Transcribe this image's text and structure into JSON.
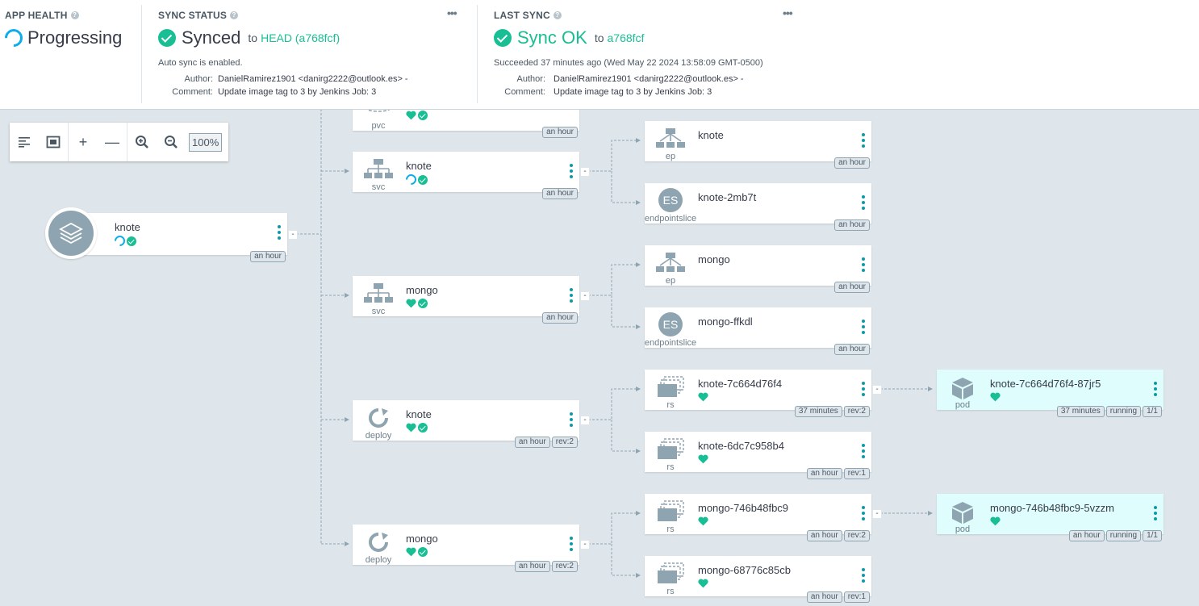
{
  "app_health": {
    "title": "APP HEALTH",
    "status": "Progressing"
  },
  "sync_status": {
    "title": "SYNC STATUS",
    "status": "Synced",
    "to_label": "to",
    "revision": "HEAD (a768fcf)",
    "auto_sync": "Auto sync is enabled.",
    "author_label": "Author:",
    "author": "DanielRamirez1901 <danirg2222@outlook.es> -",
    "comment_label": "Comment:",
    "comment": "Update image tag to 3 by Jenkins Job: 3",
    "menu": "•••"
  },
  "last_sync": {
    "title": "LAST SYNC",
    "status": "Sync OK",
    "to_label": "to",
    "revision": "a768fcf",
    "succeeded": "Succeeded 37 minutes ago (Wed May 22 2024 13:58:09 GMT-0500)",
    "author_label": "Author:",
    "author": "DanielRamirez1901 <danirg2222@outlook.es> -",
    "comment_label": "Comment:",
    "comment": "Update image tag to 3 by Jenkins Job: 3",
    "menu": "•••"
  },
  "toolbar": {
    "zoom": "100%"
  },
  "colors": {
    "healthy": "#18be94",
    "progressing": "#0dadea",
    "kebab": "#0c9aa6",
    "icon_gray": "#8fa4b1"
  },
  "app": {
    "name": "knote",
    "age": "an hour"
  },
  "nodes": {
    "pvc": {
      "kind": "pvc",
      "age": "an hour"
    },
    "svc_knote": {
      "name": "knote",
      "kind": "svc",
      "age": "an hour"
    },
    "ep_knote": {
      "name": "knote",
      "kind": "ep",
      "age": "an hour"
    },
    "es_knote": {
      "name": "knote-2mb7t",
      "kind": "endpointslice",
      "icon_text": "ES",
      "age": "an hour"
    },
    "svc_mongo": {
      "name": "mongo",
      "kind": "svc",
      "age": "an hour"
    },
    "ep_mongo": {
      "name": "mongo",
      "kind": "ep",
      "age": "an hour"
    },
    "es_mongo": {
      "name": "mongo-ffkdl",
      "kind": "endpointslice",
      "icon_text": "ES",
      "age": "an hour"
    },
    "deploy_knote": {
      "name": "knote",
      "kind": "deploy",
      "age": "an hour",
      "rev": "rev:2"
    },
    "rs_knote_1": {
      "name": "knote-7c664d76f4",
      "kind": "rs",
      "age": "37 minutes",
      "rev": "rev:2"
    },
    "pod_knote": {
      "name": "knote-7c664d76f4-87jr5",
      "kind": "pod",
      "age": "37 minutes",
      "phase": "running",
      "ready": "1/1"
    },
    "rs_knote_2": {
      "name": "knote-6dc7c958b4",
      "kind": "rs",
      "age": "an hour",
      "rev": "rev:1"
    },
    "deploy_mongo": {
      "name": "mongo",
      "kind": "deploy",
      "age": "an hour",
      "rev": "rev:2"
    },
    "rs_mongo_1": {
      "name": "mongo-746b48fbc9",
      "kind": "rs",
      "age": "an hour",
      "rev": "rev:2"
    },
    "pod_mongo": {
      "name": "mongo-746b48fbc9-5vzzm",
      "kind": "pod",
      "age": "an hour",
      "phase": "running",
      "ready": "1/1"
    },
    "rs_mongo_2": {
      "name": "mongo-68776c85cb",
      "kind": "rs",
      "age": "an hour",
      "rev": "rev:1"
    }
  }
}
